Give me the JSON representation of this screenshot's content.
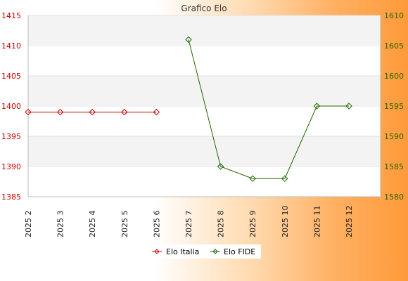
{
  "chart_data": {
    "type": "line",
    "title": "Grafico Elo",
    "categories": [
      "2025 2",
      "2025 3",
      "2025 4",
      "2025 5",
      "2025 6",
      "2025 7",
      "2025 8",
      "2025 9",
      "2025 10",
      "2025 11",
      "2025 12"
    ],
    "y_left": {
      "ticks": [
        1385,
        1390,
        1395,
        1400,
        1405,
        1410,
        1415
      ],
      "range": [
        1385,
        1415
      ]
    },
    "y_right": {
      "ticks": [
        1580,
        1585,
        1590,
        1595,
        1600,
        1605,
        1610
      ],
      "range": [
        1580,
        1610
      ]
    },
    "grid": "horizontal bands",
    "legend_position": "bottom-center",
    "series": [
      {
        "name": "Elo Italia",
        "axis": "left",
        "color": "#cc0000",
        "values": [
          1399,
          1399,
          1399,
          1399,
          1399,
          null,
          null,
          null,
          null,
          null,
          null
        ]
      },
      {
        "name": "Elo FIDE",
        "axis": "right",
        "color": "#226600",
        "values": [
          null,
          null,
          null,
          null,
          null,
          1606,
          1585,
          1583,
          1583,
          1595,
          1595
        ]
      }
    ]
  }
}
